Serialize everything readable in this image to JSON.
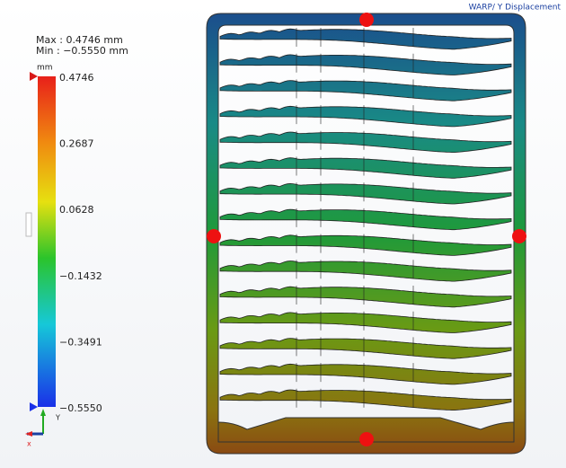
{
  "header": {
    "title": "WARP/ Y Displacement"
  },
  "legend": {
    "max": "Max : 0.4746 mm",
    "min": "Min : −0.5550 mm",
    "unit": "mm",
    "ticks": [
      "0.4746",
      "0.2687",
      "0.0628",
      "−0.1432",
      "−0.3491",
      "−0.5550"
    ]
  },
  "triad": {
    "y": "Y",
    "x": "x"
  }
}
